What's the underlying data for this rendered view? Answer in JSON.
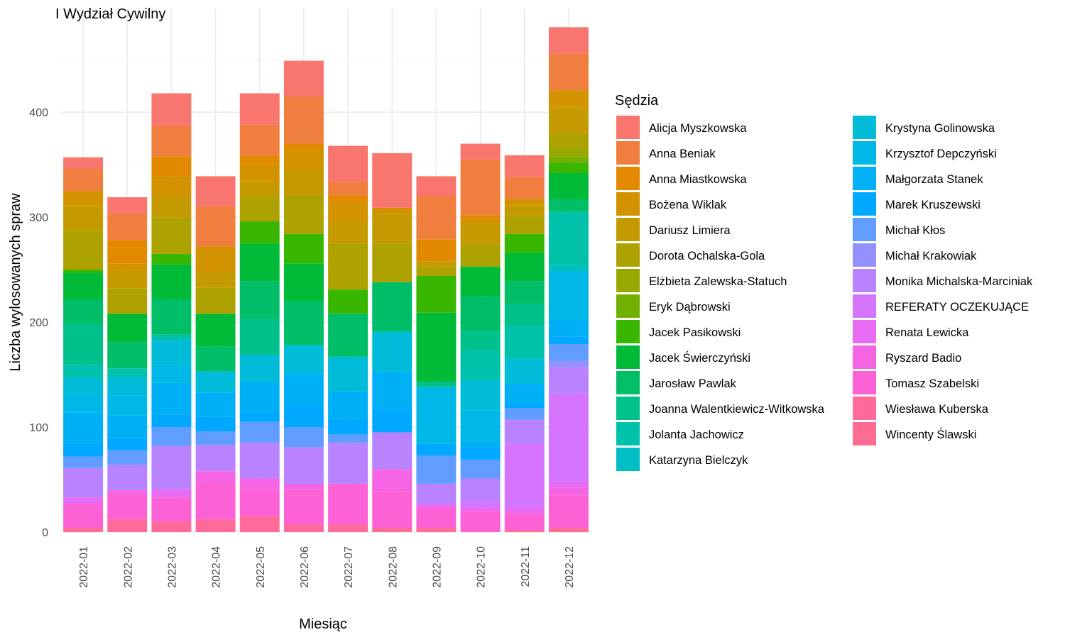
{
  "chart_data": {
    "type": "bar",
    "stacked": true,
    "title": "I Wydział Cywilny",
    "xlabel": "Miesiąc",
    "ylabel": "Liczba wylosowanych spraw",
    "ylim": [
      0,
      480
    ],
    "yticks": [
      0,
      100,
      200,
      300,
      400
    ],
    "grid": true,
    "legend_title": "Sędzia",
    "legend_position": "right",
    "categories": [
      "2022-01",
      "2022-02",
      "2022-03",
      "2022-04",
      "2022-05",
      "2022-06",
      "2022-07",
      "2022-08",
      "2022-09",
      "2022-10",
      "2022-11",
      "2022-12"
    ],
    "series": [
      {
        "name": "Wincenty Ślawski",
        "color": "#FF6C91",
        "values": [
          4,
          0,
          0,
          0,
          0,
          0,
          0,
          4,
          4,
          0,
          2,
          4
        ]
      },
      {
        "name": "Wiesława Kuberska",
        "color": "#FF6A9A",
        "values": [
          0,
          12,
          10,
          12,
          15,
          7,
          7,
          0,
          0,
          0,
          0,
          0
        ]
      },
      {
        "name": "Tomasz Szabelski",
        "color": "#FC61D5",
        "values": [
          23,
          24,
          23,
          35,
          26,
          33,
          39,
          35,
          19,
          19,
          16,
          31
        ]
      },
      {
        "name": "Ryszard Badio",
        "color": "#F564E3",
        "values": [
          0,
          4,
          0,
          11,
          10,
          6,
          0,
          21,
          0,
          3,
          0,
          7
        ]
      },
      {
        "name": "Renata Lewicka",
        "color": "#E76BF3",
        "values": [
          6,
          0,
          8,
          0,
          0,
          0,
          0,
          0,
          4,
          0,
          5,
          6
        ]
      },
      {
        "name": "REFERATY OCZEKUJĄCE",
        "color": "#D575FE",
        "values": [
          0,
          0,
          0,
          0,
          0,
          0,
          0,
          0,
          0,
          7,
          61,
          84
        ]
      },
      {
        "name": "Monika Michalska-Marciniak",
        "color": "#B983FF",
        "values": [
          28,
          24,
          41,
          25,
          34,
          35,
          39,
          35,
          19,
          22,
          23,
          25
        ]
      },
      {
        "name": "Michał Krakowiak",
        "color": "#9590FF",
        "values": [
          0,
          0,
          0,
          0,
          0,
          0,
          0,
          0,
          0,
          0,
          0,
          6
        ]
      },
      {
        "name": "Michał Kłos",
        "color": "#619CFF",
        "values": [
          11,
          14,
          18,
          13,
          20,
          19,
          8,
          0,
          27,
          18,
          11,
          16
        ]
      },
      {
        "name": "Marek Kruszewski",
        "color": "#00A9FF",
        "values": [
          12,
          12,
          12,
          14,
          10,
          20,
          15,
          22,
          11,
          12,
          5,
          7
        ]
      },
      {
        "name": "Małgorzata Stanek",
        "color": "#00B0F6",
        "values": [
          30,
          21,
          30,
          23,
          28,
          31,
          26,
          36,
          0,
          6,
          18,
          17
        ]
      },
      {
        "name": "Krzysztof Depczyński",
        "color": "#00B8E7",
        "values": [
          17,
          19,
          17,
          0,
          0,
          0,
          0,
          0,
          54,
          29,
          0,
          45
        ]
      },
      {
        "name": "Krystyna Golinowska",
        "color": "#00BCD8",
        "values": [
          16,
          18,
          24,
          20,
          26,
          27,
          33,
          38,
          0,
          29,
          24,
          0
        ]
      },
      {
        "name": "Katarzyna Bielczyk",
        "color": "#00BFC4",
        "values": [
          0,
          0,
          0,
          0,
          0,
          0,
          0,
          0,
          0,
          0,
          0,
          6
        ]
      },
      {
        "name": "Jolanta Jachowicz",
        "color": "#00C1AA",
        "values": [
          13,
          8,
          5,
          0,
          0,
          0,
          0,
          0,
          0,
          28,
          31,
          51
        ]
      },
      {
        "name": "Joanna Walentkiewicz-Witkowska",
        "color": "#00C08B",
        "values": [
          38,
          0,
          0,
          0,
          34,
          0,
          0,
          0,
          5,
          18,
          21,
          0
        ]
      },
      {
        "name": "Jarosław Pawlak",
        "color": "#00BE67",
        "values": [
          24,
          25,
          34,
          24,
          36,
          42,
          41,
          47,
          0,
          34,
          22,
          12
        ]
      },
      {
        "name": "Jacek Świerczyński",
        "color": "#00BA38",
        "values": [
          25,
          27,
          33,
          31,
          36,
          36,
          0,
          0,
          66,
          28,
          27,
          25
        ]
      },
      {
        "name": "Jacek Pasikowski",
        "color": "#39B600",
        "values": [
          3,
          0,
          10,
          0,
          21,
          28,
          23,
          0,
          35,
          0,
          18,
          10
        ]
      },
      {
        "name": "Eryk Dąbrowski",
        "color": "#72B000",
        "values": [
          0,
          0,
          0,
          0,
          0,
          0,
          0,
          0,
          0,
          0,
          0,
          5
        ]
      },
      {
        "name": "Elżbieta Zalewska-Statuch",
        "color": "#99A800",
        "values": [
          0,
          0,
          0,
          0,
          0,
          0,
          0,
          0,
          0,
          0,
          0,
          9
        ]
      },
      {
        "name": "Dorota Ochalska-Gola",
        "color": "#AEA200",
        "values": [
          37,
          24,
          35,
          25,
          23,
          37,
          44,
          37,
          9,
          21,
          17,
          14
        ]
      },
      {
        "name": "Dariusz Limiera",
        "color": "#C49A00",
        "values": [
          24,
          17,
          20,
          15,
          15,
          23,
          21,
          28,
          5,
          20,
          10,
          25
        ]
      },
      {
        "name": "Bożena Wiklak",
        "color": "#D39200",
        "values": [
          14,
          7,
          19,
          24,
          16,
          21,
          18,
          6,
          0,
          5,
          6,
          16
        ]
      },
      {
        "name": "Anna Miastkowska",
        "color": "#E38900",
        "values": [
          0,
          22,
          19,
          0,
          9,
          5,
          7,
          0,
          21,
          3,
          0,
          0
        ]
      },
      {
        "name": "Anna Beniak",
        "color": "#F07F3F",
        "values": [
          21,
          26,
          29,
          38,
          29,
          45,
          13,
          0,
          41,
          53,
          21,
          35
        ]
      },
      {
        "name": "Alicja Myszkowska",
        "color": "#F8766D",
        "values": [
          11,
          15,
          31,
          29,
          30,
          34,
          34,
          52,
          19,
          15,
          21,
          25
        ]
      }
    ]
  },
  "legend_col1": [
    "Alicja Myszkowska",
    "Anna Beniak",
    "Anna Miastkowska",
    "Bożena Wiklak",
    "Dariusz Limiera",
    "Dorota Ochalska-Gola",
    "Elżbieta Zalewska-Statuch",
    "Eryk Dąbrowski",
    "Jacek Pasikowski",
    "Jacek Świerczyński",
    "Jarosław Pawlak",
    "Joanna Walentkiewicz-Witkowska",
    "Jolanta Jachowicz",
    "Katarzyna Bielczyk"
  ],
  "legend_col2": [
    "Krystyna Golinowska",
    "Krzysztof Depczyński",
    "Małgorzata Stanek",
    "Marek Kruszewski",
    "Michał Kłos",
    "Michał Krakowiak",
    "Monika Michalska-Marciniak",
    "REFERATY OCZEKUJĄCE",
    "Renata Lewicka",
    "Ryszard Badio",
    "Tomasz Szabelski",
    "Wiesława Kuberska",
    "Wincenty Ślawski"
  ]
}
